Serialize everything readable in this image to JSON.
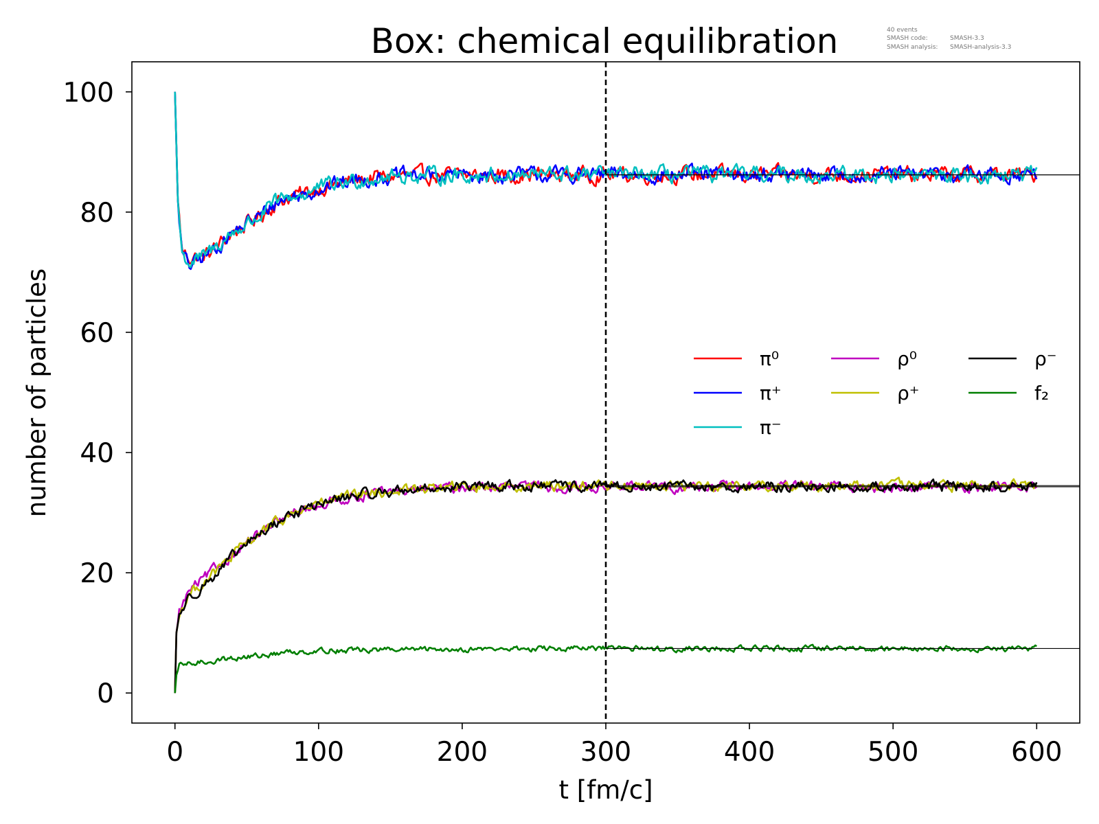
{
  "chart_data": {
    "type": "line",
    "title": "Box: chemical equilibration",
    "annotation": {
      "line1": "40 events",
      "line2_label": "SMASH code:",
      "line2_value": "SMASH-3.3",
      "line3_label": "SMASH analysis:",
      "line3_value": "SMASH-analysis-3.3"
    },
    "xlabel": "t [fm/c]",
    "ylabel": "number of particles",
    "xlim": [
      -30,
      630
    ],
    "ylim": [
      -5,
      105
    ],
    "xticks": [
      0,
      100,
      200,
      300,
      400,
      500,
      600
    ],
    "yticks": [
      0,
      20,
      40,
      60,
      80,
      100
    ],
    "grid": false,
    "legend_position": "center-right",
    "vline": {
      "x": 300,
      "style": "dashed"
    },
    "series": [
      {
        "name": "π⁰",
        "color": "#ff0000",
        "equilibrium": 86.2,
        "points": [
          [
            0,
            100
          ],
          [
            2,
            82
          ],
          [
            5,
            73.5
          ],
          [
            10,
            72.5
          ],
          [
            20,
            72.5
          ],
          [
            30,
            74.5
          ],
          [
            40,
            76.5
          ],
          [
            50,
            78
          ],
          [
            60,
            79.5
          ],
          [
            70,
            81.5
          ],
          [
            80,
            82.5
          ],
          [
            90,
            83
          ],
          [
            100,
            84
          ],
          [
            120,
            85
          ],
          [
            140,
            85.8
          ],
          [
            160,
            86
          ],
          [
            180,
            86.1
          ],
          [
            200,
            86.1
          ],
          [
            250,
            86.2
          ],
          [
            300,
            86.2
          ],
          [
            600,
            86.2
          ]
        ]
      },
      {
        "name": "π⁺",
        "color": "#0000ff",
        "equilibrium": 86.2,
        "points": [
          [
            0,
            100
          ],
          [
            2,
            82
          ],
          [
            5,
            73
          ],
          [
            10,
            71
          ],
          [
            20,
            72.5
          ],
          [
            30,
            74.5
          ],
          [
            40,
            76.5
          ],
          [
            50,
            78
          ],
          [
            60,
            79.5
          ],
          [
            70,
            81.5
          ],
          [
            80,
            82.5
          ],
          [
            90,
            83
          ],
          [
            100,
            84
          ],
          [
            120,
            85
          ],
          [
            140,
            85.8
          ],
          [
            160,
            86
          ],
          [
            180,
            86.1
          ],
          [
            200,
            86.1
          ],
          [
            250,
            86.2
          ],
          [
            300,
            86.2
          ],
          [
            600,
            86.2
          ]
        ]
      },
      {
        "name": "π⁻",
        "color": "#00bfbf",
        "equilibrium": 86.2,
        "points": [
          [
            0,
            100
          ],
          [
            2,
            82
          ],
          [
            5,
            73
          ],
          [
            10,
            71.5
          ],
          [
            20,
            72.5
          ],
          [
            30,
            74.5
          ],
          [
            40,
            76.5
          ],
          [
            50,
            78
          ],
          [
            60,
            79.5
          ],
          [
            70,
            81.5
          ],
          [
            80,
            82.5
          ],
          [
            90,
            83
          ],
          [
            100,
            84
          ],
          [
            120,
            85
          ],
          [
            140,
            85.8
          ],
          [
            160,
            86
          ],
          [
            180,
            86.1
          ],
          [
            200,
            86.1
          ],
          [
            250,
            86.2
          ],
          [
            300,
            86.2
          ],
          [
            600,
            86.2
          ]
        ]
      },
      {
        "name": "ρ⁰",
        "color": "#bf00bf",
        "equilibrium": 34.3,
        "points": [
          [
            0,
            0
          ],
          [
            1,
            10
          ],
          [
            3,
            13.5
          ],
          [
            10,
            17
          ],
          [
            20,
            19
          ],
          [
            30,
            21
          ],
          [
            40,
            23
          ],
          [
            50,
            25
          ],
          [
            60,
            26.5
          ],
          [
            70,
            28
          ],
          [
            80,
            29.5
          ],
          [
            90,
            30.5
          ],
          [
            100,
            31.3
          ],
          [
            120,
            32.5
          ],
          [
            140,
            33.2
          ],
          [
            160,
            33.7
          ],
          [
            180,
            34
          ],
          [
            200,
            34.2
          ],
          [
            250,
            34.3
          ],
          [
            300,
            34.3
          ],
          [
            600,
            34.3
          ]
        ]
      },
      {
        "name": "ρ⁺",
        "color": "#bfbf00",
        "equilibrium": 34.5,
        "points": [
          [
            0,
            0
          ],
          [
            1,
            10
          ],
          [
            3,
            13
          ],
          [
            10,
            16.5
          ],
          [
            20,
            18.5
          ],
          [
            30,
            20.5
          ],
          [
            40,
            22.8
          ],
          [
            50,
            25
          ],
          [
            60,
            26.8
          ],
          [
            70,
            28.2
          ],
          [
            80,
            29.6
          ],
          [
            90,
            30.6
          ],
          [
            100,
            31.4
          ],
          [
            120,
            32.6
          ],
          [
            140,
            33.3
          ],
          [
            160,
            33.8
          ],
          [
            180,
            34.1
          ],
          [
            200,
            34.3
          ],
          [
            250,
            34.5
          ],
          [
            300,
            34.5
          ],
          [
            600,
            34.5
          ]
        ]
      },
      {
        "name": "ρ⁻",
        "color": "#000000",
        "equilibrium": 34.3,
        "points": [
          [
            0,
            0
          ],
          [
            1,
            10
          ],
          [
            3,
            13
          ],
          [
            10,
            16
          ],
          [
            20,
            18
          ],
          [
            30,
            20
          ],
          [
            40,
            22.5
          ],
          [
            50,
            24.8
          ],
          [
            60,
            26.6
          ],
          [
            70,
            28.2
          ],
          [
            80,
            29.6
          ],
          [
            90,
            30.6
          ],
          [
            100,
            31.4
          ],
          [
            120,
            32.6
          ],
          [
            140,
            33.3
          ],
          [
            160,
            33.8
          ],
          [
            180,
            34.1
          ],
          [
            200,
            34.3
          ],
          [
            250,
            34.4
          ],
          [
            300,
            34.3
          ],
          [
            600,
            34.3
          ]
        ]
      },
      {
        "name": "f₂",
        "color": "#007f00",
        "equilibrium": 7.4,
        "points": [
          [
            0,
            0
          ],
          [
            1,
            3
          ],
          [
            3,
            4.5
          ],
          [
            10,
            4.8
          ],
          [
            20,
            5.2
          ],
          [
            40,
            5.8
          ],
          [
            60,
            6.2
          ],
          [
            80,
            6.8
          ],
          [
            100,
            7.1
          ],
          [
            150,
            7.2
          ],
          [
            200,
            7.3
          ],
          [
            300,
            7.4
          ],
          [
            600,
            7.4
          ]
        ]
      }
    ]
  }
}
